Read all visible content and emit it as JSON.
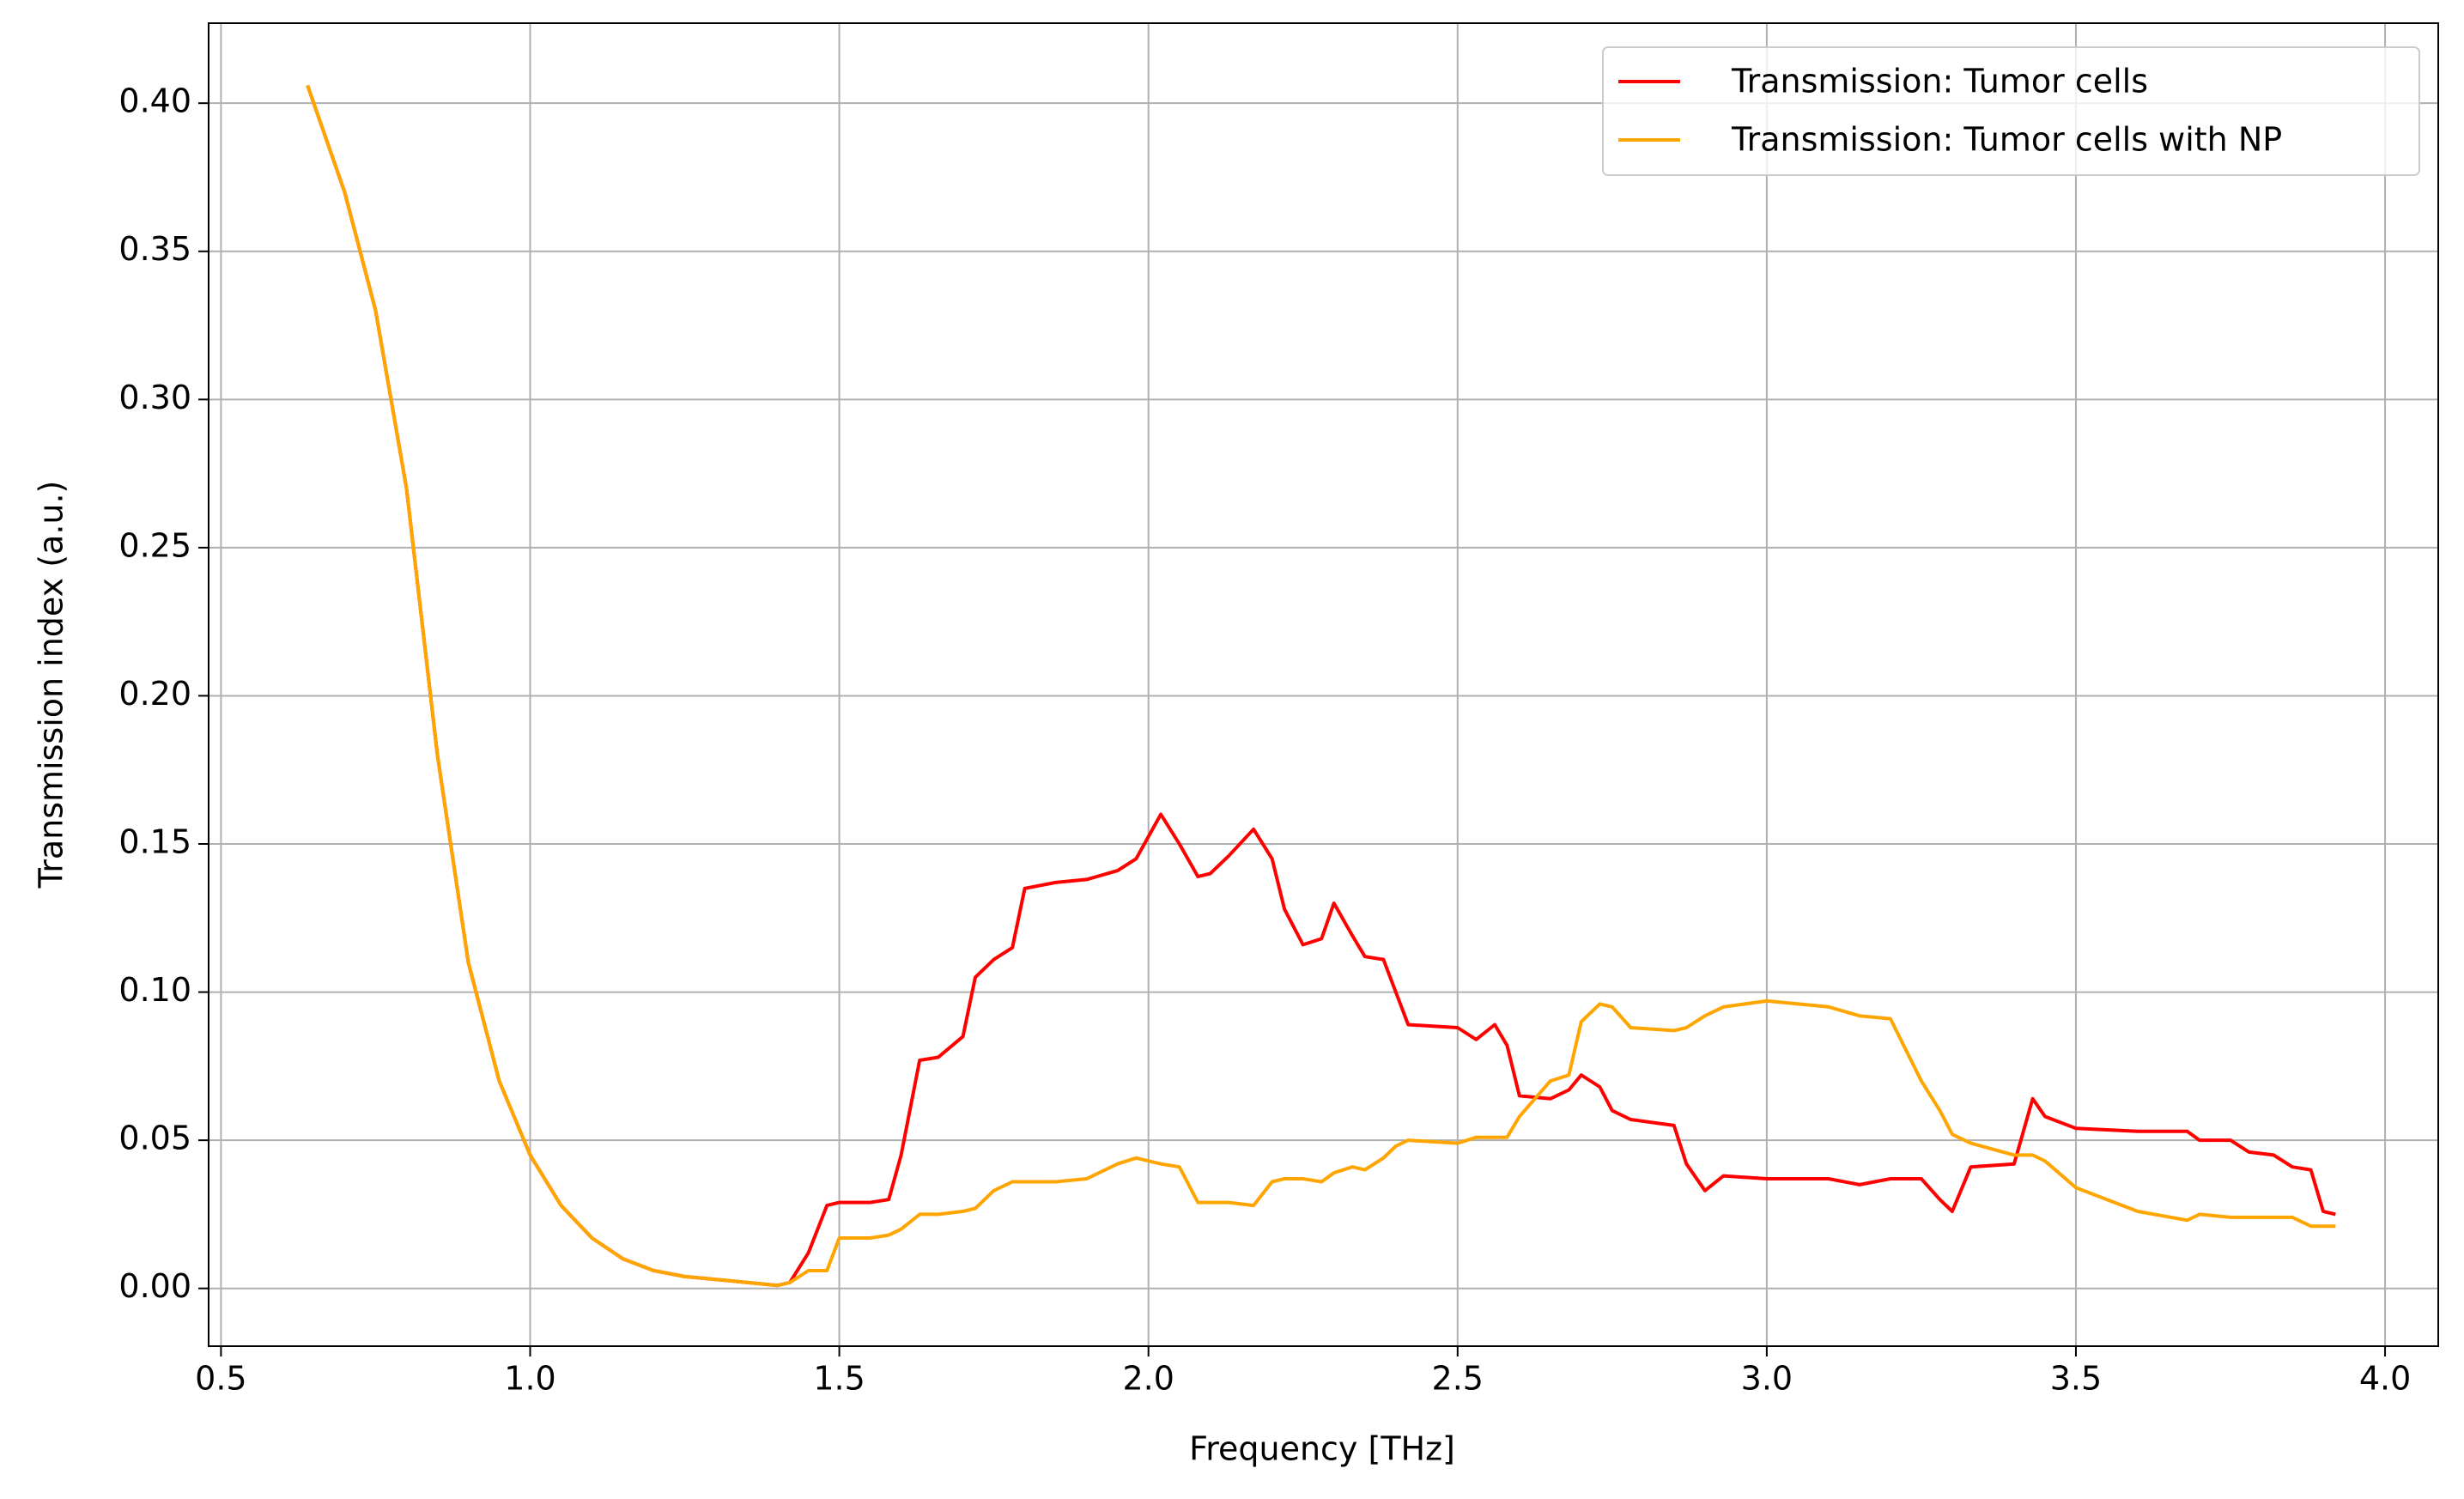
{
  "chart_data": {
    "type": "line",
    "xlabel": "Frequency [THz]",
    "ylabel": "Transmission index (a.u.)",
    "x": [
      0.64,
      0.7,
      0.75,
      0.8,
      0.85,
      0.9,
      0.95,
      1.0,
      1.05,
      1.1,
      1.15,
      1.2,
      1.25,
      1.3,
      1.35,
      1.4,
      1.42,
      1.45,
      1.48,
      1.5,
      1.55,
      1.58,
      1.6,
      1.63,
      1.66,
      1.7,
      1.72,
      1.75,
      1.78,
      1.8,
      1.85,
      1.9,
      1.95,
      1.98,
      2.02,
      2.05,
      2.08,
      2.1,
      2.13,
      2.17,
      2.2,
      2.22,
      2.25,
      2.28,
      2.3,
      2.33,
      2.35,
      2.38,
      2.4,
      2.42,
      2.5,
      2.53,
      2.56,
      2.58,
      2.6,
      2.65,
      2.68,
      2.7,
      2.73,
      2.75,
      2.78,
      2.85,
      2.87,
      2.9,
      2.93,
      3.0,
      3.1,
      3.15,
      3.2,
      3.25,
      3.28,
      3.3,
      3.33,
      3.4,
      3.43,
      3.45,
      3.5,
      3.6,
      3.68,
      3.7,
      3.75,
      3.78,
      3.82,
      3.85,
      3.88,
      3.9,
      3.92
    ],
    "series": [
      {
        "name": "Transmission: Tumor cells",
        "color": "#ff0000",
        "values": [
          0.406,
          0.37,
          0.33,
          0.27,
          0.18,
          0.11,
          0.07,
          0.045,
          0.028,
          0.017,
          0.01,
          0.006,
          0.004,
          0.003,
          0.002,
          0.001,
          0.002,
          0.012,
          0.028,
          0.029,
          0.029,
          0.03,
          0.045,
          0.077,
          0.078,
          0.085,
          0.105,
          0.111,
          0.115,
          0.135,
          0.137,
          0.138,
          0.141,
          0.145,
          0.16,
          0.15,
          0.139,
          0.14,
          0.146,
          0.155,
          0.145,
          0.128,
          0.116,
          0.118,
          0.13,
          0.119,
          0.112,
          0.111,
          0.1,
          0.089,
          0.088,
          0.084,
          0.089,
          0.082,
          0.065,
          0.064,
          0.067,
          0.072,
          0.068,
          0.06,
          0.057,
          0.055,
          0.042,
          0.033,
          0.038,
          0.037,
          0.037,
          0.035,
          0.037,
          0.037,
          0.03,
          0.026,
          0.041,
          0.042,
          0.064,
          0.058,
          0.054,
          0.053,
          0.053,
          0.05,
          0.05,
          0.046,
          0.045,
          0.041,
          0.04,
          0.026,
          0.025
        ]
      },
      {
        "name": "Transmission: Tumor cells with NP",
        "color": "#ffa500",
        "values": [
          0.406,
          0.37,
          0.33,
          0.27,
          0.18,
          0.11,
          0.07,
          0.045,
          0.028,
          0.017,
          0.01,
          0.006,
          0.004,
          0.003,
          0.002,
          0.001,
          0.002,
          0.006,
          0.006,
          0.017,
          0.017,
          0.018,
          0.02,
          0.025,
          0.025,
          0.026,
          0.027,
          0.033,
          0.036,
          0.036,
          0.036,
          0.037,
          0.042,
          0.044,
          0.042,
          0.041,
          0.029,
          0.029,
          0.029,
          0.028,
          0.036,
          0.037,
          0.037,
          0.036,
          0.039,
          0.041,
          0.04,
          0.044,
          0.048,
          0.05,
          0.049,
          0.051,
          0.051,
          0.051,
          0.058,
          0.07,
          0.072,
          0.09,
          0.096,
          0.095,
          0.088,
          0.087,
          0.088,
          0.092,
          0.095,
          0.097,
          0.095,
          0.092,
          0.091,
          0.07,
          0.06,
          0.052,
          0.049,
          0.045,
          0.045,
          0.043,
          0.034,
          0.026,
          0.023,
          0.025,
          0.024,
          0.024,
          0.024,
          0.024,
          0.021,
          0.021,
          0.021
        ]
      }
    ],
    "xlim": [
      0.48,
      4.086
    ],
    "ylim": [
      -0.0195,
      0.427
    ],
    "xticks": [
      {
        "value": 0.5,
        "label": "0.5"
      },
      {
        "value": 1.0,
        "label": "1.0"
      },
      {
        "value": 1.5,
        "label": "1.5"
      },
      {
        "value": 2.0,
        "label": "2.0"
      },
      {
        "value": 2.5,
        "label": "2.5"
      },
      {
        "value": 3.0,
        "label": "3.0"
      },
      {
        "value": 3.5,
        "label": "3.5"
      },
      {
        "value": 4.0,
        "label": "4.0"
      }
    ],
    "yticks": [
      {
        "value": 0,
        "label": "0.00"
      },
      {
        "value": 0.05,
        "label": "0.05"
      },
      {
        "value": 0.1,
        "label": "0.10"
      },
      {
        "value": 0.15,
        "label": "0.15"
      },
      {
        "value": 0.2,
        "label": "0.20"
      },
      {
        "value": 0.25,
        "label": "0.25"
      },
      {
        "value": 0.3,
        "label": "0.30"
      },
      {
        "value": 0.35,
        "label": "0.35"
      },
      {
        "value": 0.4,
        "label": "0.40"
      }
    ],
    "grid": true,
    "legend": "upper right"
  }
}
